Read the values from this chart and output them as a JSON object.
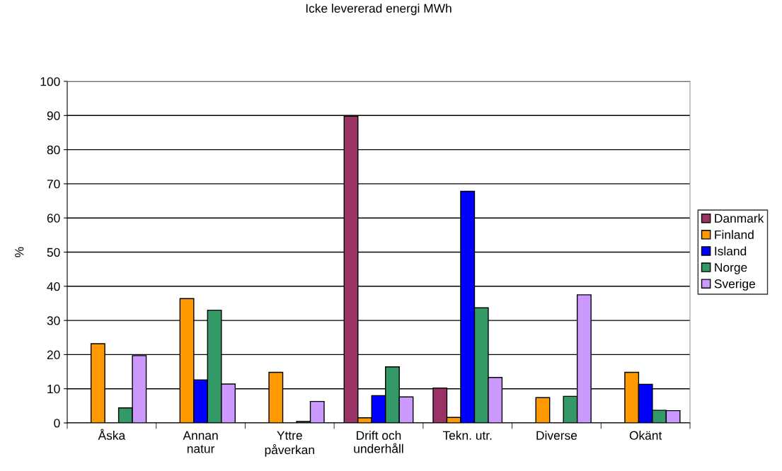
{
  "chart_data": {
    "type": "bar",
    "title": "Icke levererad energi MWh",
    "ylabel": "%",
    "categories": [
      "Åska",
      "Annan\nnatur",
      "Yttre\npåverkan",
      "Drift och\nunderhåll",
      "Tekn. utr.",
      "Diverse",
      "Okänt"
    ],
    "series": [
      {
        "name": "Danmark",
        "color": "#993366",
        "values": [
          null,
          null,
          null,
          89.8,
          10.2,
          null,
          null
        ]
      },
      {
        "name": "Finland",
        "color": "#ff9900",
        "values": [
          23.2,
          36.4,
          14.8,
          1.5,
          1.6,
          7.4,
          14.8
        ]
      },
      {
        "name": "Island",
        "color": "#0000ff",
        "values": [
          null,
          12.6,
          null,
          8.0,
          67.8,
          null,
          11.3
        ]
      },
      {
        "name": "Norge",
        "color": "#339966",
        "values": [
          4.4,
          33.0,
          0.4,
          16.4,
          33.7,
          7.8,
          3.7
        ]
      },
      {
        "name": "Sverige",
        "color": "#cc99ff",
        "values": [
          19.7,
          11.4,
          6.3,
          7.6,
          13.3,
          37.5,
          3.6
        ]
      }
    ],
    "ylim": [
      0,
      100
    ],
    "yticks": [
      0,
      10,
      20,
      30,
      40,
      50,
      60,
      70,
      80,
      90,
      100
    ],
    "grid": "y",
    "legend": "right"
  }
}
